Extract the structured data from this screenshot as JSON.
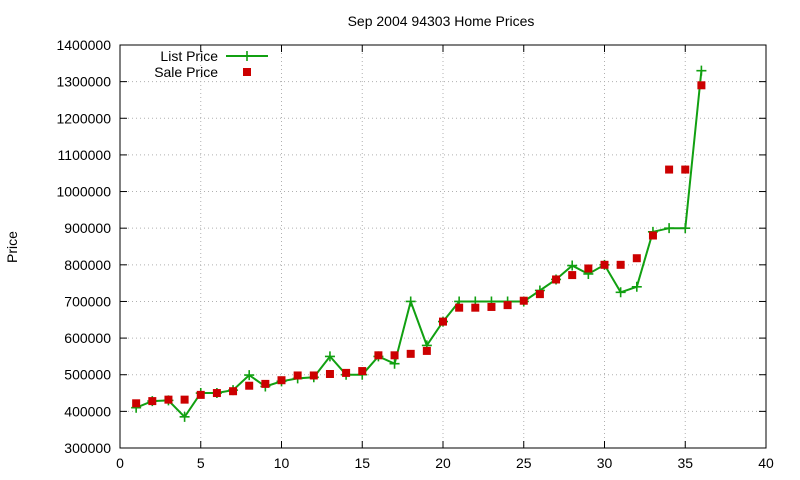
{
  "chart_data": {
    "type": "line",
    "title": "Sep 2004 94303 Home Prices",
    "xlabel": "",
    "ylabel": "Price",
    "xlim": [
      0,
      40
    ],
    "ylim": [
      300000,
      1400000
    ],
    "x_ticks": [
      0,
      5,
      10,
      15,
      20,
      25,
      30,
      35,
      40
    ],
    "y_ticks": [
      300000,
      400000,
      500000,
      600000,
      700000,
      800000,
      900000,
      1000000,
      1100000,
      1200000,
      1300000,
      1400000
    ],
    "grid": true,
    "legend_position": "top-left",
    "series": [
      {
        "name": "List Price",
        "style": "line-with-plus",
        "color": "#11a011",
        "points": [
          [
            1,
            410000
          ],
          [
            2,
            428000
          ],
          [
            3,
            430000
          ],
          [
            4,
            385000
          ],
          [
            5,
            450000
          ],
          [
            6,
            450000
          ],
          [
            7,
            458000
          ],
          [
            8,
            499000
          ],
          [
            9,
            468000
          ],
          [
            10,
            482000
          ],
          [
            11,
            490000
          ],
          [
            12,
            493000
          ],
          [
            13,
            550000
          ],
          [
            14,
            500000
          ],
          [
            15,
            500000
          ],
          [
            16,
            550000
          ],
          [
            17,
            530000
          ],
          [
            18,
            700000
          ],
          [
            19,
            580000
          ],
          [
            20,
            645000
          ],
          [
            21,
            700000
          ],
          [
            22,
            700000
          ],
          [
            23,
            700000
          ],
          [
            24,
            700000
          ],
          [
            25,
            700000
          ],
          [
            26,
            730000
          ],
          [
            27,
            760000
          ],
          [
            28,
            798000
          ],
          [
            29,
            775000
          ],
          [
            30,
            800000
          ],
          [
            31,
            725000
          ],
          [
            32,
            740000
          ],
          [
            33,
            890000
          ],
          [
            34,
            900000
          ],
          [
            35,
            900000
          ],
          [
            36,
            1330000
          ]
        ]
      },
      {
        "name": "Sale Price",
        "style": "square-markers",
        "color": "#cc0000",
        "points": [
          [
            1,
            422000
          ],
          [
            2,
            428000
          ],
          [
            3,
            432000
          ],
          [
            4,
            432000
          ],
          [
            5,
            445000
          ],
          [
            6,
            450000
          ],
          [
            7,
            455000
          ],
          [
            8,
            470000
          ],
          [
            9,
            475000
          ],
          [
            10,
            485000
          ],
          [
            11,
            498000
          ],
          [
            12,
            498000
          ],
          [
            13,
            502000
          ],
          [
            14,
            505000
          ],
          [
            15,
            510000
          ],
          [
            16,
            553000
          ],
          [
            17,
            553000
          ],
          [
            18,
            557000
          ],
          [
            19,
            565000
          ],
          [
            20,
            645000
          ],
          [
            21,
            683000
          ],
          [
            22,
            683000
          ],
          [
            23,
            685000
          ],
          [
            24,
            690000
          ],
          [
            25,
            702000
          ],
          [
            26,
            720000
          ],
          [
            27,
            760000
          ],
          [
            28,
            772000
          ],
          [
            29,
            790000
          ],
          [
            30,
            800000
          ],
          [
            31,
            800000
          ],
          [
            32,
            818000
          ],
          [
            33,
            880000
          ],
          [
            34,
            1060000
          ],
          [
            35,
            1060000
          ],
          [
            36,
            1290000
          ]
        ]
      }
    ]
  }
}
